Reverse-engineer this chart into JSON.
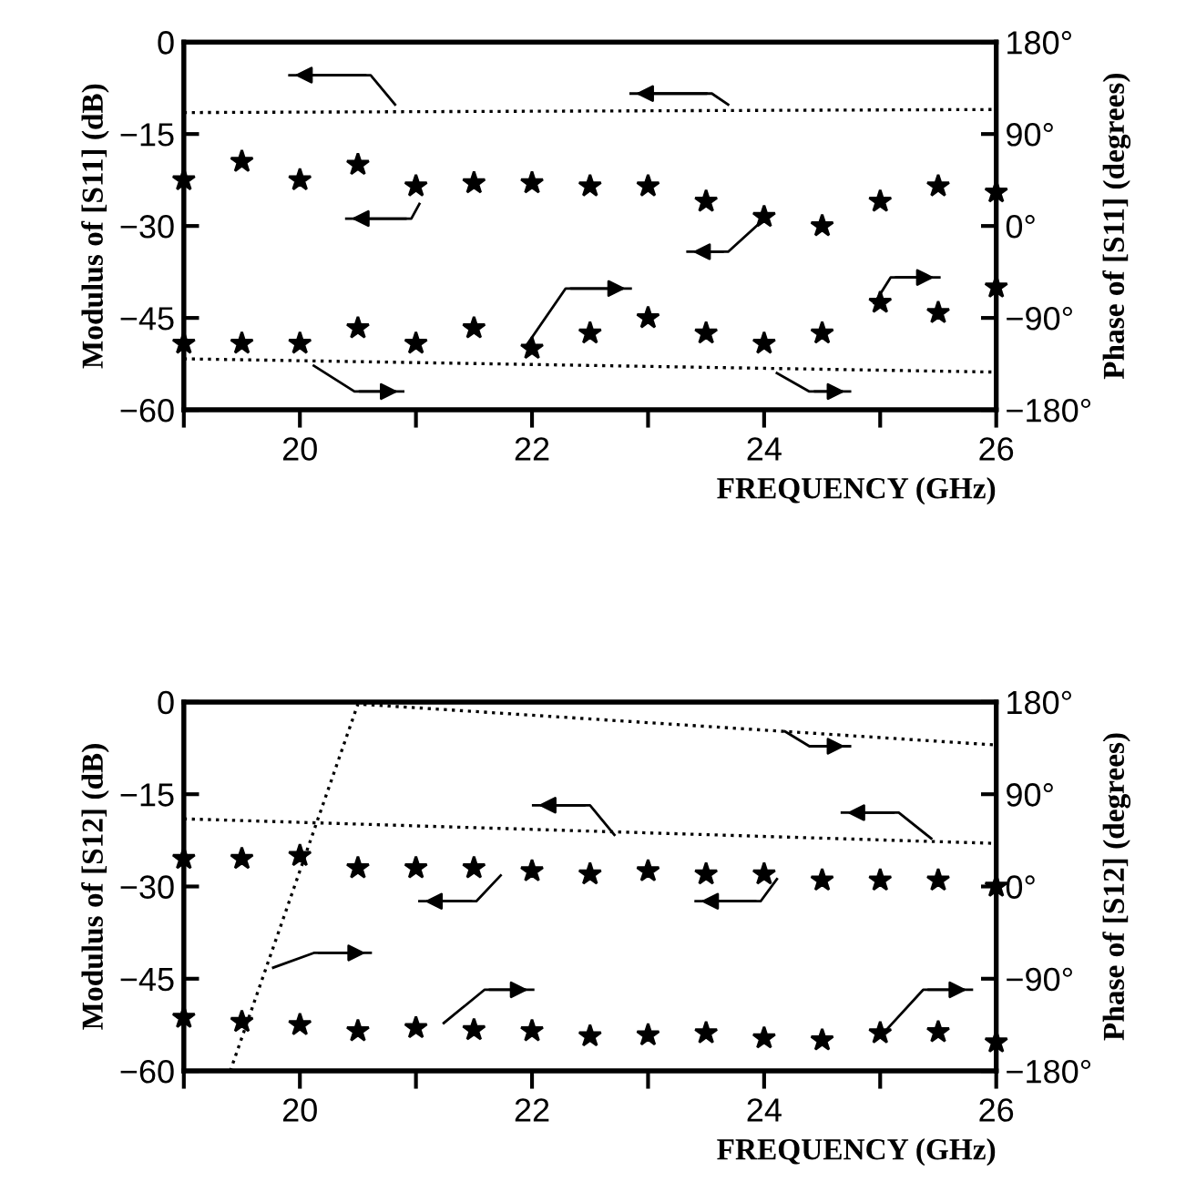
{
  "chart_data": [
    {
      "type": "scatter",
      "xlabel": "FREQUENCY (GHz)",
      "ylabel": "Modulus of [S11] (dB)",
      "y2label": "Phase of [S11] (degrees)",
      "xlim": [
        19,
        26
      ],
      "xticks": [
        {
          "value": 19,
          "label": null
        },
        20,
        {
          "value": 21,
          "label": null
        },
        22,
        {
          "value": 23,
          "label": null
        },
        24,
        {
          "value": 25,
          "label": null
        },
        26
      ],
      "ylim": [
        -60,
        0
      ],
      "yticks": [
        0,
        -15,
        -30,
        -45,
        -60
      ],
      "y2lim": [
        -180,
        180
      ],
      "y2ticks": [
        {
          "value": 180,
          "label": "180°"
        },
        {
          "value": 90,
          "label": "90°"
        },
        {
          "value": 0,
          "label": "0°"
        },
        {
          "value": -90,
          "label": "−90°"
        },
        {
          "value": -180,
          "label": "−180°"
        }
      ],
      "grid": false,
      "legend": false,
      "series": [
        {
          "marker": "star",
          "color": "#000000",
          "x": [
            19,
            19.5,
            20,
            20.5,
            21,
            21.5,
            22,
            22.5,
            23,
            23.5,
            24,
            24.5,
            25,
            25.5,
            26
          ],
          "values": [
            -22.5,
            -19.5,
            -22.5,
            -20,
            -23.5,
            -23,
            -23,
            -23.5,
            -23.5,
            -26,
            -28.5,
            -30,
            -26,
            -23.5,
            -24.5
          ]
        },
        {
          "marker": "star",
          "axis": "y2",
          "color": "#000000",
          "x": [
            19,
            19.5,
            20,
            20.5,
            21,
            21.5,
            22,
            22.5,
            23,
            23.5,
            24,
            24.5,
            25,
            25.5,
            26
          ],
          "values": [
            -115,
            -115,
            -115,
            -100,
            -115,
            -100,
            -120,
            -105,
            -90,
            -105,
            -115,
            -105,
            -75,
            -85,
            -60
          ]
        },
        {
          "type": "line",
          "line_style": "dotted",
          "color": "#000000",
          "x": [
            19,
            26
          ],
          "values": [
            -11.5,
            -11
          ]
        },
        {
          "type": "line",
          "line_style": "dotted",
          "axis": "y2",
          "color": "#000000",
          "x": [
            19,
            26
          ],
          "values": [
            -130,
            -143
          ]
        }
      ]
    },
    {
      "type": "scatter",
      "xlabel": "FREQUENCY (GHz)",
      "ylabel": "Modulus of [S12] (dB)",
      "y2label": "Phase of [S12] (degrees)",
      "xlim": [
        19,
        26
      ],
      "xticks": [
        {
          "value": 19,
          "label": null
        },
        20,
        {
          "value": 21,
          "label": null
        },
        22,
        {
          "value": 23,
          "label": null
        },
        24,
        {
          "value": 25,
          "label": null
        },
        26
      ],
      "ylim": [
        -60,
        0
      ],
      "yticks": [
        0,
        -15,
        -30,
        -45,
        -60
      ],
      "y2lim": [
        -180,
        180
      ],
      "y2ticks": [
        {
          "value": 180,
          "label": "180°"
        },
        {
          "value": 90,
          "label": "90°"
        },
        {
          "value": 0,
          "label": "0°"
        },
        {
          "value": -90,
          "label": "−90°"
        },
        {
          "value": -180,
          "label": "−180°"
        }
      ],
      "grid": false,
      "legend": false,
      "series": [
        {
          "marker": "star",
          "color": "#000000",
          "x": [
            19,
            19.5,
            20,
            20.5,
            21,
            21.5,
            22,
            22.5,
            23,
            23.5,
            24,
            24.5,
            25,
            25.5,
            26
          ],
          "values": [
            -25.5,
            -25.5,
            -25,
            -27,
            -27,
            -27,
            -27.5,
            -28,
            -27.5,
            -28,
            -28,
            -29,
            -29,
            -29,
            -30
          ]
        },
        {
          "marker": "star",
          "axis": "y2",
          "color": "#000000",
          "x": [
            19,
            19.5,
            20,
            20.5,
            21,
            21.5,
            22,
            22.5,
            23,
            23.5,
            24,
            24.5,
            25,
            25.5,
            26
          ],
          "values": [
            -128,
            -132,
            -135,
            -141,
            -138,
            -140,
            -141,
            -146,
            -145,
            -143,
            -148,
            -150,
            -143,
            -142,
            -152
          ]
        },
        {
          "type": "line",
          "line_style": "dotted",
          "color": "#000000",
          "x": [
            19,
            26
          ],
          "values": [
            -19,
            -23
          ]
        },
        {
          "type": "line",
          "line_style": "dotted",
          "axis": "y2",
          "color": "#000000",
          "x": [
            19.4,
            20.5,
            26
          ],
          "values": [
            -180,
            178,
            138
          ]
        }
      ]
    }
  ]
}
